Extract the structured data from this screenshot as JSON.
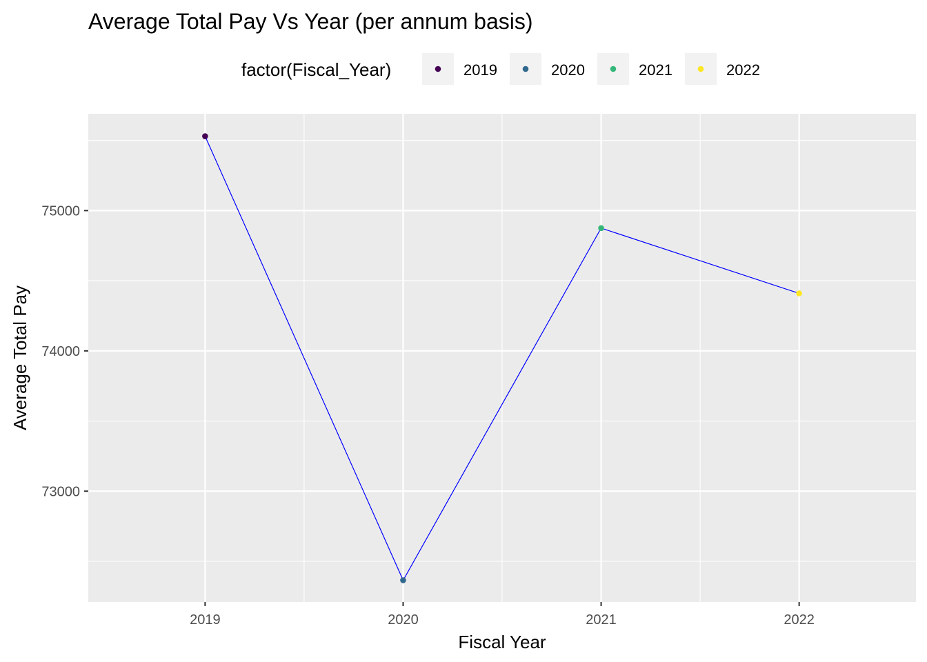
{
  "chart_data": {
    "type": "line",
    "title": "Average Total Pay Vs Year (per annum basis)",
    "xlabel": "Fiscal Year",
    "ylabel": "Average Total Pay",
    "x": [
      2019,
      2020,
      2021,
      2022
    ],
    "x_tick_labels": [
      "2019",
      "2020",
      "2021",
      "2022"
    ],
    "y": [
      75530,
      72365,
      74875,
      74410
    ],
    "xlim": [
      2018.41,
      2022.59
    ],
    "ylim": [
      72210,
      75690
    ],
    "y_ticks": [
      73000,
      74000,
      75000
    ],
    "y_minor_ticks": [
      72500,
      73500,
      74500,
      75500
    ],
    "y_tick_labels": [
      "73000",
      "74000",
      "75000"
    ],
    "line_color": "#0000FF",
    "grid": true,
    "panel_background": "#EBEBEB",
    "legend": {
      "title": "factor(Fiscal_Year)",
      "position": "top",
      "entries": [
        {
          "label": "2019",
          "color": "#440154"
        },
        {
          "label": "2020",
          "color": "#31688E"
        },
        {
          "label": "2021",
          "color": "#35B779"
        },
        {
          "label": "2022",
          "color": "#FDE725"
        }
      ]
    }
  }
}
